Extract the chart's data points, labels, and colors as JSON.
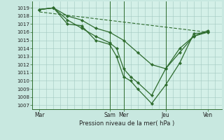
{
  "background_color": "#c8e8e0",
  "plot_bg_color": "#d4f0e8",
  "grid_color": "#a0c8c0",
  "line_color": "#2d6b2d",
  "marker_color": "#2d6b2d",
  "axis_color": "#2d6b2d",
  "xlabel_text": "Pression niveau de la mer( hPa )",
  "x_ticks_labels": [
    "Mar",
    "Sam",
    "Mer",
    "Jeu",
    "Ven"
  ],
  "x_ticks_pos": [
    0,
    5,
    6,
    9,
    12
  ],
  "ylim": [
    1006.5,
    1019.8
  ],
  "xlim": [
    -0.5,
    13.0
  ],
  "yticks": [
    1007,
    1008,
    1009,
    1010,
    1011,
    1012,
    1013,
    1014,
    1015,
    1016,
    1017,
    1018,
    1019
  ],
  "vlines_x": [
    5,
    6,
    9
  ],
  "lines": [
    {
      "x": [
        0,
        12
      ],
      "y": [
        1018.5,
        1016.0
      ],
      "has_markers": false
    },
    {
      "x": [
        0,
        1,
        2,
        3,
        4,
        5,
        5.5,
        6,
        6.5,
        7,
        8,
        9,
        10,
        11,
        12
      ],
      "y": [
        1018.8,
        1019.0,
        1017.0,
        1016.8,
        1015.0,
        1014.5,
        1013.0,
        1010.5,
        1010.0,
        1009.0,
        1007.2,
        1009.5,
        1012.2,
        1015.8,
        1016.0
      ],
      "has_markers": true
    },
    {
      "x": [
        0,
        1,
        2,
        3,
        4,
        5,
        5.5,
        6,
        6.5,
        7,
        8,
        9,
        10,
        11,
        12
      ],
      "y": [
        1018.8,
        1019.0,
        1017.5,
        1016.5,
        1015.5,
        1014.7,
        1014.0,
        1011.5,
        1010.5,
        1009.8,
        1008.2,
        1011.5,
        1014.0,
        1015.5,
        1016.2
      ],
      "has_markers": true
    },
    {
      "x": [
        0,
        1,
        2,
        3,
        4,
        5,
        6,
        7,
        8,
        9,
        10,
        11,
        12
      ],
      "y": [
        1018.8,
        1019.0,
        1018.0,
        1017.5,
        1016.5,
        1016.0,
        1015.0,
        1013.5,
        1012.0,
        1011.5,
        1013.5,
        1015.5,
        1016.0
      ],
      "has_markers": true
    }
  ]
}
